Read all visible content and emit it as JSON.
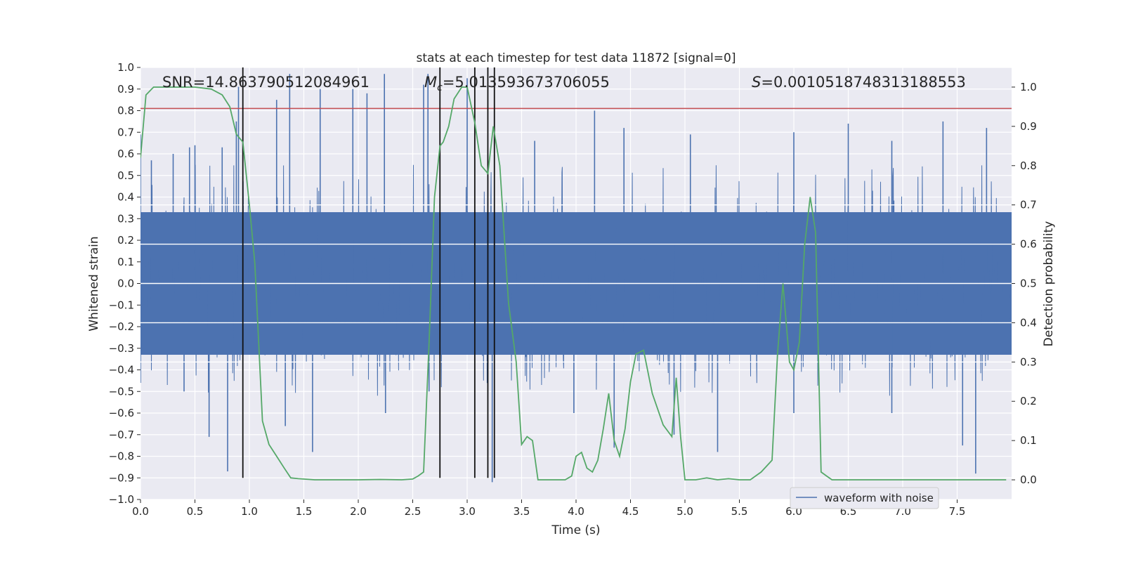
{
  "chart_data": {
    "type": "line",
    "title": "stats at each timestep for test data 11872 [signal=0]",
    "xlabel": "Time (s)",
    "ylabel": "Whitened strain",
    "y2label": "Detection probability",
    "xlim": [
      0.0,
      8.0
    ],
    "ylim": [
      -1.0,
      1.0
    ],
    "y2lim": [
      -0.05,
      1.05
    ],
    "grid": true,
    "legend_position": "lower-right",
    "xticks": [
      "0.0",
      "0.5",
      "1.0",
      "1.5",
      "2.0",
      "2.5",
      "3.0",
      "3.5",
      "4.0",
      "4.5",
      "5.0",
      "5.5",
      "6.0",
      "6.5",
      "7.0",
      "7.5"
    ],
    "yticks": [
      "−1.0",
      "−0.9",
      "−0.8",
      "−0.7",
      "−0.6",
      "−0.5",
      "−0.4",
      "−0.3",
      "−0.2",
      "−0.1",
      "0.0",
      "0.1",
      "0.2",
      "0.3",
      "0.4",
      "0.5",
      "0.6",
      "0.7",
      "0.8",
      "0.9",
      "1.0"
    ],
    "y2ticks": [
      "0.0",
      "0.1",
      "0.2",
      "0.3",
      "0.4",
      "0.5",
      "0.6",
      "0.7",
      "0.8",
      "0.9",
      "1.0"
    ],
    "annotations": {
      "snr_label": "SNR=14.863790512084961",
      "mc_symbol": "M",
      "mc_subscript": "c",
      "mc_value": "=5.013593673706055",
      "s_symbol": "S",
      "s_value": "=0.0010518748313188553"
    },
    "threshold_y": 0.81,
    "vlines": [
      0.94,
      2.75,
      3.07,
      3.19,
      3.25
    ],
    "series": [
      {
        "name": "waveform with noise",
        "color": "#4c72b0",
        "note_envelope_sampled": true,
        "envelope_upper_peaks": [
          [
            0.0,
            0.69
          ],
          [
            0.1,
            0.57
          ],
          [
            0.3,
            0.6
          ],
          [
            0.45,
            0.63
          ],
          [
            0.5,
            0.64
          ],
          [
            0.75,
            0.63
          ],
          [
            0.88,
            0.75
          ],
          [
            0.9,
            0.91
          ],
          [
            1.25,
            0.85
          ],
          [
            1.37,
            0.97
          ],
          [
            1.65,
            0.9
          ],
          [
            1.95,
            0.9
          ],
          [
            2.08,
            0.88
          ],
          [
            2.24,
            0.97
          ],
          [
            2.6,
            0.92
          ],
          [
            2.64,
            0.97
          ],
          [
            3.0,
            0.95
          ],
          [
            3.62,
            0.66
          ],
          [
            4.17,
            0.8
          ],
          [
            4.44,
            0.72
          ],
          [
            5.05,
            0.69
          ],
          [
            6.0,
            0.7
          ],
          [
            6.5,
            0.74
          ],
          [
            6.9,
            0.66
          ],
          [
            7.37,
            0.75
          ],
          [
            7.77,
            0.72
          ]
        ],
        "envelope_lower_peaks": [
          [
            0.0,
            -0.46
          ],
          [
            0.4,
            -0.5
          ],
          [
            0.63,
            -0.71
          ],
          [
            0.8,
            -0.87
          ],
          [
            1.33,
            -0.66
          ],
          [
            1.58,
            -0.78
          ],
          [
            2.25,
            -0.6
          ],
          [
            2.65,
            -0.5
          ],
          [
            3.23,
            -0.92
          ],
          [
            3.98,
            -0.6
          ],
          [
            4.35,
            -0.76
          ],
          [
            4.9,
            -0.7
          ],
          [
            5.3,
            -0.78
          ],
          [
            6.0,
            -0.6
          ],
          [
            6.9,
            -0.6
          ],
          [
            7.55,
            -0.75
          ],
          [
            7.67,
            -0.88
          ]
        ]
      },
      {
        "name": "",
        "color": "#55a868",
        "axis": "right",
        "x": [
          0.0,
          0.05,
          0.12,
          0.3,
          0.5,
          0.65,
          0.75,
          0.82,
          0.88,
          0.94,
          1.0,
          1.05,
          1.12,
          1.18,
          1.25,
          1.32,
          1.38,
          1.45,
          1.6,
          1.8,
          2.0,
          2.2,
          2.4,
          2.5,
          2.55,
          2.6,
          2.65,
          2.7,
          2.75,
          2.78,
          2.83,
          2.88,
          2.95,
          3.0,
          3.07,
          3.13,
          3.19,
          3.24,
          3.3,
          3.38,
          3.45,
          3.5,
          3.55,
          3.6,
          3.65,
          3.72,
          3.8,
          3.9,
          3.96,
          4.0,
          4.05,
          4.1,
          4.15,
          4.2,
          4.25,
          4.3,
          4.35,
          4.4,
          4.45,
          4.5,
          4.55,
          4.62,
          4.7,
          4.8,
          4.88,
          4.92,
          4.96,
          5.0,
          5.1,
          5.2,
          5.3,
          5.4,
          5.5,
          5.6,
          5.7,
          5.8,
          5.85,
          5.9,
          5.96,
          6.0,
          6.05,
          6.1,
          6.15,
          6.2,
          6.25,
          6.3,
          6.35,
          6.4,
          6.5,
          6.7,
          7.0,
          7.5,
          7.85,
          7.95
        ],
        "y": [
          0.82,
          0.98,
          1.0,
          1.0,
          1.0,
          0.995,
          0.98,
          0.95,
          0.88,
          0.86,
          0.7,
          0.55,
          0.15,
          0.09,
          0.06,
          0.03,
          0.005,
          0.003,
          0.0,
          0.0,
          0.0,
          0.001,
          0.0,
          0.002,
          0.01,
          0.02,
          0.35,
          0.72,
          0.85,
          0.86,
          0.9,
          0.97,
          1.0,
          1.0,
          0.91,
          0.8,
          0.78,
          0.9,
          0.8,
          0.45,
          0.3,
          0.09,
          0.11,
          0.1,
          0.0,
          0.0,
          0.0,
          0.0,
          0.01,
          0.06,
          0.07,
          0.03,
          0.02,
          0.05,
          0.13,
          0.22,
          0.1,
          0.06,
          0.13,
          0.25,
          0.32,
          0.33,
          0.22,
          0.14,
          0.11,
          0.26,
          0.11,
          0.0,
          0.0,
          0.005,
          0.0,
          0.003,
          0.0,
          0.0,
          0.02,
          0.05,
          0.32,
          0.5,
          0.3,
          0.28,
          0.35,
          0.6,
          0.72,
          0.63,
          0.02,
          0.01,
          0.0,
          0.0,
          0.0,
          0.0,
          0.0,
          0.0,
          0.0,
          0.0
        ]
      }
    ]
  }
}
